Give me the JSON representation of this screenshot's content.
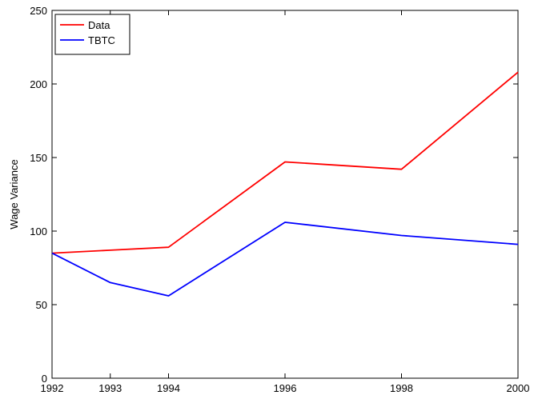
{
  "chart_data": {
    "type": "line",
    "title": "",
    "xlabel": "",
    "ylabel": "Wage Variance",
    "x": [
      1992,
      1993,
      1994,
      1996,
      1998,
      2000
    ],
    "xlim": [
      1992,
      2000
    ],
    "ylim": [
      0,
      250
    ],
    "xticks": [
      "1992",
      "1993",
      "1994",
      "1996",
      "1998",
      "2000"
    ],
    "yticks": [
      "0",
      "50",
      "100",
      "150",
      "200",
      "250"
    ],
    "grid": false,
    "legend_position": "top-left",
    "series": [
      {
        "name": "Data",
        "color": "#ff0000",
        "values": [
          85,
          87,
          89,
          147,
          142,
          208
        ]
      },
      {
        "name": "TBTC",
        "color": "#0000ff",
        "values": [
          85,
          65,
          56,
          106,
          97,
          91
        ]
      }
    ]
  }
}
